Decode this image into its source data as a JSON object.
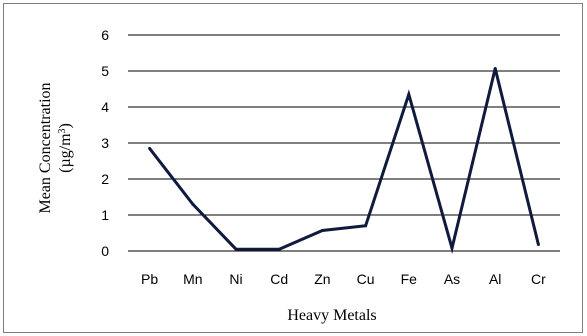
{
  "chart_data": {
    "type": "line",
    "categories": [
      "Pb",
      "Mn",
      "Ni",
      "Cd",
      "Zn",
      "Cu",
      "Fe",
      "As",
      "Al",
      "Cr"
    ],
    "series": [
      {
        "values": [
          2.85,
          1.3,
          0.05,
          0.05,
          0.57,
          0.7,
          4.35,
          0.08,
          5.07,
          0.18
        ]
      }
    ],
    "xlabel": "Heavy Metals",
    "ylabel_line1": "Mean Concentration",
    "ylabel_line2_prefix": "(µg/m",
    "ylabel_line2_sup": "3",
    "ylabel_line2_suffix": ")",
    "ylim": [
      0,
      6
    ],
    "yticks": [
      0,
      1,
      2,
      3,
      4,
      5,
      6
    ],
    "grid": true,
    "legend": "none",
    "line_color": "#0f1a3d"
  }
}
